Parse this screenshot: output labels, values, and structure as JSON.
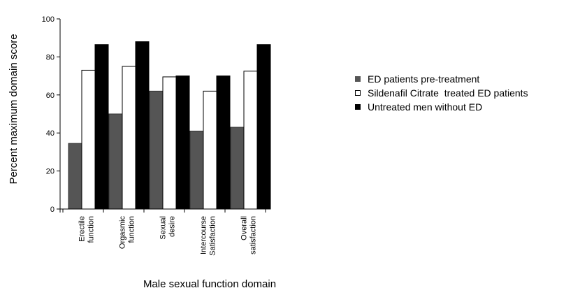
{
  "chart_data": {
    "type": "bar",
    "title": "",
    "xlabel": "Male sexual function domain",
    "ylabel": "Percent maximum domain score",
    "ylim": [
      0,
      100
    ],
    "yticks": [
      0,
      20,
      40,
      60,
      80,
      100
    ],
    "categories": [
      [
        "Erectile",
        "function"
      ],
      [
        "Orgasmic",
        "function"
      ],
      [
        "Sexual",
        "desire"
      ],
      [
        "Intercourse",
        "Satisfaction"
      ],
      [
        "Overall",
        "satisfaction"
      ]
    ],
    "series": [
      {
        "name": "ED patients pre-treatment",
        "color": "#555555",
        "stroke": "#333333",
        "values": [
          34.5,
          50,
          62,
          41,
          43
        ]
      },
      {
        "name": "Sildenafil Citrate  treated ED patients",
        "color": "#ffffff",
        "stroke": "#000000",
        "values": [
          73,
          75,
          69.5,
          62,
          72.5
        ]
      },
      {
        "name": "Untreated men without ED",
        "color": "#000000",
        "stroke": "#000000",
        "values": [
          86.5,
          88,
          70,
          70,
          86.5
        ]
      }
    ],
    "legend_position": "right",
    "grid": false
  }
}
